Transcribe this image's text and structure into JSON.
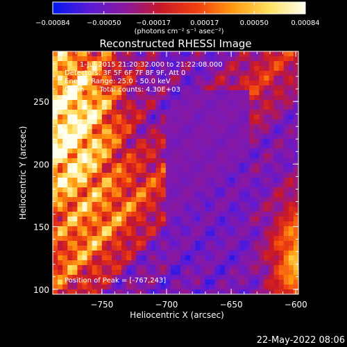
{
  "chart_data": {
    "type": "heatmap",
    "title": "Reconstructed RHESSI Image",
    "xlabel": "Heliocentric X (arcsec)",
    "ylabel": "Heliocentric Y (arcsec)",
    "xlim": [
      -788,
      -598
    ],
    "ylim": [
      96,
      290
    ],
    "x_ticks": [
      -750,
      -700,
      -650,
      -600
    ],
    "x_tick_labels": [
      "−750",
      "−700",
      "−650",
      "−600"
    ],
    "y_ticks": [
      100,
      150,
      200,
      250
    ],
    "y_tick_labels": [
      "100",
      "150",
      "200",
      "250"
    ],
    "colorbar": {
      "ticks": [
        -0.00084,
        -0.0005,
        -0.00017,
        0.00017,
        0.0005,
        0.00084
      ],
      "tick_labels": [
        "−0.00084",
        "−0.00050",
        "−0.00017",
        "0.00017",
        "0.00050",
        "0.00084"
      ],
      "unit_label": "(photons cm⁻² s⁻¹ asec⁻²)",
      "range": [
        -0.00084,
        0.00084
      ],
      "colors": [
        "#0018f0",
        "#5a1ad8",
        "#8a18a0",
        "#c81828",
        "#f04010",
        "#ff9a10",
        "#ffe060",
        "#fffff0"
      ]
    },
    "grid": false,
    "peak": [
      -767,
      243
    ]
  },
  "annotations": [
    "1-Jul-2015 21:20:32.000 to 21:22:08.000",
    "Detectors: 3F 5F 6F 7F 8F 9F, Att 0",
    "Energy Range: 25.0 - 50.0 keV",
    "Clean       Total counts: 4.30E+03",
    "Position of Peak = [-767,243]"
  ],
  "timestamp": "22-May-2022 08:06",
  "colors": {
    "background": "#000000",
    "text": "#ffffff",
    "low": "#0018f0",
    "high": "#fffff0"
  }
}
